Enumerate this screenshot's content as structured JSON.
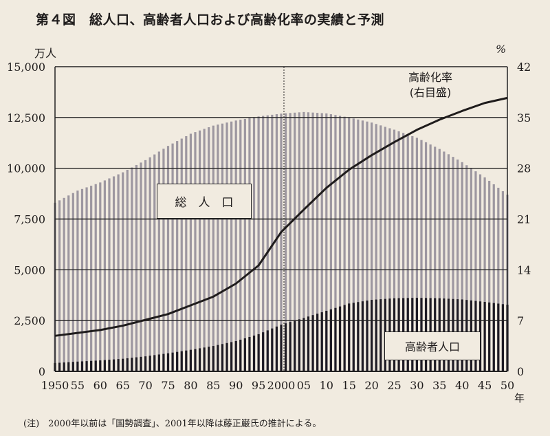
{
  "title": "第４図　総人口、高齢者人口および高齢化率の実績と予測",
  "axes": {
    "left_unit": "万人",
    "right_unit": "%",
    "x_unit": "年",
    "left_ticks": [
      "15,000",
      "12,500",
      "10,000",
      "7,500",
      "5,000",
      "2,500",
      "0"
    ],
    "right_ticks": [
      "42",
      "35",
      "28",
      "21",
      "14",
      "7",
      "0"
    ],
    "x_ticks": [
      "1950",
      "55",
      "60",
      "65",
      "70",
      "75",
      "80",
      "85",
      "90",
      "95",
      "2000",
      "05",
      "10",
      "15",
      "20",
      "25",
      "30",
      "35",
      "40",
      "45",
      "50"
    ]
  },
  "labels": {
    "total_population": "総　人　口",
    "elderly_population": "高齢者人口",
    "aging_rate": "高齢化率",
    "aging_rate_axis": "(右目盛)"
  },
  "note": "(注)　2000年以前は「国勢調査」、2001年以降は藤正巌氏の推計による。",
  "colors": {
    "background": "#f1ebe0",
    "total_bar": "#9d97a0",
    "elderly_bar": "#1e1b24",
    "line": "#1f1c1c"
  },
  "chart_data": {
    "type": "bar",
    "title": "第４図　総人口、高齢者人口および高齢化率の実績と予測",
    "xlabel": "年",
    "ylabel": "万人",
    "y2label": "%",
    "ylim": [
      0,
      15000
    ],
    "y2lim": [
      0,
      42
    ],
    "x": [
      1950,
      1955,
      1960,
      1965,
      1970,
      1975,
      1980,
      1985,
      1990,
      1995,
      2000,
      2005,
      2010,
      2015,
      2020,
      2025,
      2030,
      2035,
      2040,
      2045,
      2050
    ],
    "series": [
      {
        "name": "総人口",
        "type": "bar",
        "axis": "left",
        "values": [
          8300,
          8900,
          9300,
          9800,
          10400,
          11100,
          11700,
          12100,
          12350,
          12550,
          12690,
          12770,
          12700,
          12500,
          12250,
          11900,
          11500,
          10950,
          10300,
          9550,
          8700
        ]
      },
      {
        "name": "高齢者人口",
        "type": "bar",
        "axis": "left",
        "values": [
          410,
          480,
          540,
          620,
          740,
          890,
          1060,
          1250,
          1490,
          1830,
          2300,
          2630,
          2980,
          3340,
          3520,
          3600,
          3620,
          3600,
          3540,
          3420,
          3280
        ]
      },
      {
        "name": "高齢化率(右目盛)",
        "type": "line",
        "axis": "right",
        "values": [
          4.9,
          5.3,
          5.7,
          6.3,
          7.1,
          7.9,
          9.1,
          10.3,
          12.1,
          14.6,
          19.2,
          22.3,
          25.3,
          27.8,
          29.8,
          31.6,
          33.3,
          34.7,
          35.9,
          37.0,
          37.7
        ]
      }
    ],
    "annotations": [
      "2000年に縦の点線 (実績/推計の境界)"
    ],
    "grid": true,
    "legend_position": "inline labels"
  }
}
